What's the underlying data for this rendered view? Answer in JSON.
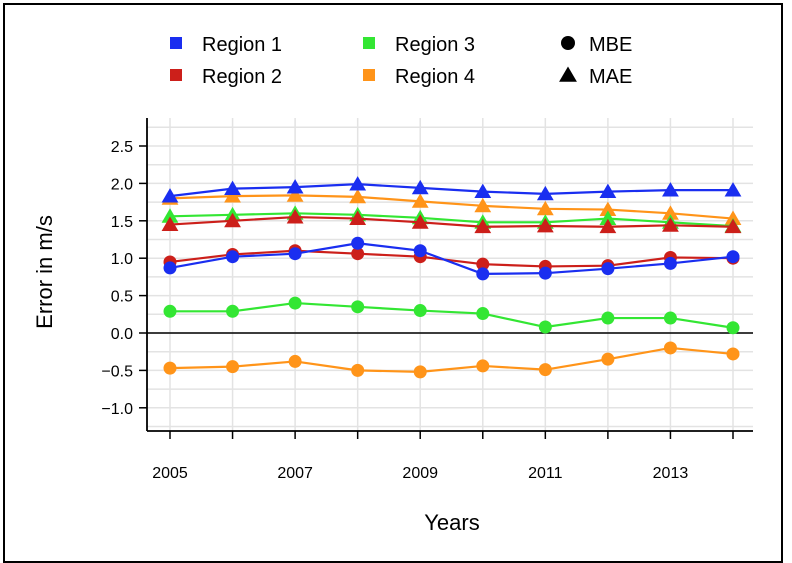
{
  "chart_data": {
    "type": "line",
    "title": "",
    "xlabel": "Years",
    "ylabel": "Error in m/s",
    "x": [
      2005,
      2006,
      2007,
      2008,
      2009,
      2010,
      2011,
      2012,
      2013,
      2014
    ],
    "xticks": [
      "2005",
      "2007",
      "2009",
      "2011",
      "2013"
    ],
    "xlim": [
      2005,
      2014
    ],
    "ylim": [
      -1.25,
      2.85
    ],
    "yticks": [
      "2.5",
      "2.0",
      "1.5",
      "1.0",
      "0.5",
      "0.0",
      "−0.5",
      "−1.0"
    ],
    "ytick_values": [
      2.5,
      2.0,
      1.5,
      1.0,
      0.5,
      0.0,
      -0.5,
      -1.0
    ],
    "grid": true,
    "zero_line": true,
    "legend_placement": "top",
    "series": [
      {
        "name": "Region 1",
        "metric": "MBE",
        "color": "#1a2ef0",
        "marker": "circle",
        "values": [
          0.87,
          1.02,
          1.06,
          1.2,
          1.1,
          0.79,
          0.8,
          0.86,
          0.93,
          1.02
        ]
      },
      {
        "name": "Region 1",
        "metric": "MAE",
        "color": "#1a2ef0",
        "marker": "triangle",
        "values": [
          1.83,
          1.93,
          1.95,
          1.99,
          1.94,
          1.89,
          1.86,
          1.89,
          1.91,
          1.91
        ]
      },
      {
        "name": "Region 2",
        "metric": "MBE",
        "color": "#cc1f1a",
        "marker": "circle",
        "values": [
          0.95,
          1.05,
          1.1,
          1.06,
          1.02,
          0.92,
          0.89,
          0.9,
          1.01,
          1.0
        ]
      },
      {
        "name": "Region 2",
        "metric": "MAE",
        "color": "#cc1f1a",
        "marker": "triangle",
        "values": [
          1.45,
          1.5,
          1.55,
          1.53,
          1.48,
          1.42,
          1.43,
          1.42,
          1.44,
          1.42
        ]
      },
      {
        "name": "Region 3",
        "metric": "MBE",
        "color": "#33e633",
        "marker": "circle",
        "values": [
          0.29,
          0.29,
          0.4,
          0.35,
          0.3,
          0.26,
          0.08,
          0.2,
          0.2,
          0.07
        ]
      },
      {
        "name": "Region 3",
        "metric": "MAE",
        "color": "#33e633",
        "marker": "triangle",
        "values": [
          1.56,
          1.58,
          1.6,
          1.58,
          1.54,
          1.48,
          1.48,
          1.53,
          1.48,
          1.43
        ]
      },
      {
        "name": "Region 4",
        "metric": "MBE",
        "color": "#ff9419",
        "marker": "circle",
        "values": [
          -0.47,
          -0.45,
          -0.38,
          -0.5,
          -0.52,
          -0.44,
          -0.49,
          -0.35,
          -0.2,
          -0.28
        ]
      },
      {
        "name": "Region 4",
        "metric": "MAE",
        "color": "#ff9419",
        "marker": "triangle",
        "values": [
          1.8,
          1.83,
          1.84,
          1.82,
          1.76,
          1.7,
          1.66,
          1.65,
          1.6,
          1.53
        ]
      }
    ],
    "legend": {
      "regions": [
        {
          "label": "Region 1",
          "color": "#1a2ef0"
        },
        {
          "label": "Region 2",
          "color": "#cc1f1a"
        },
        {
          "label": "Region 3",
          "color": "#33e633"
        },
        {
          "label": "Region 4",
          "color": "#ff9419"
        }
      ],
      "metrics": [
        {
          "label": "MBE",
          "marker": "circle"
        },
        {
          "label": "MAE",
          "marker": "triangle"
        }
      ]
    }
  }
}
